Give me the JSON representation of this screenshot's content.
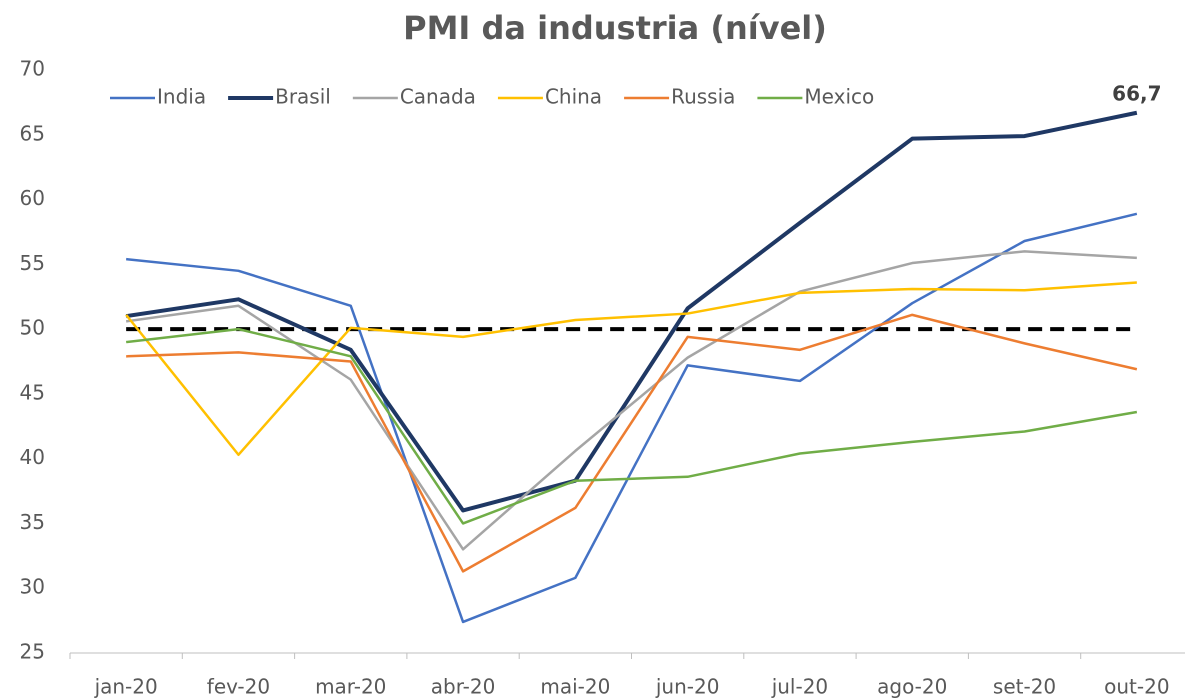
{
  "chart_data": {
    "type": "line",
    "title": "PMI da industria (nível)",
    "categories": [
      "jan-20",
      "fev-20",
      "mar-20",
      "abr-20",
      "mai-20",
      "jun-20",
      "jul-20",
      "ago-20",
      "set-20",
      "out-20"
    ],
    "series": [
      {
        "name": "India",
        "color": "#4472c4",
        "values": [
          55.4,
          54.5,
          51.8,
          27.4,
          30.8,
          47.2,
          46.0,
          52.0,
          56.8,
          58.9
        ]
      },
      {
        "name": "Brasil",
        "color": "#1f3864",
        "values": [
          51.0,
          52.3,
          48.4,
          36.0,
          38.3,
          51.6,
          58.2,
          64.7,
          64.9,
          66.7
        ],
        "value_labels": [
          null,
          null,
          null,
          null,
          null,
          null,
          null,
          null,
          null,
          "66,7"
        ]
      },
      {
        "name": "Canada",
        "color": "#a5a5a5",
        "values": [
          50.6,
          51.8,
          46.1,
          33.0,
          40.6,
          47.8,
          52.9,
          55.1,
          56.0,
          55.5
        ]
      },
      {
        "name": "China",
        "color": "#ffc000",
        "values": [
          51.1,
          40.3,
          50.1,
          49.4,
          50.7,
          51.2,
          52.8,
          53.1,
          53.0,
          53.6
        ]
      },
      {
        "name": "Russia",
        "color": "#ed7d31",
        "values": [
          47.9,
          48.2,
          47.5,
          31.3,
          36.2,
          49.4,
          48.4,
          51.1,
          48.9,
          46.9
        ]
      },
      {
        "name": "Mexico",
        "color": "#70ad47",
        "values": [
          49.0,
          50.0,
          47.9,
          35.0,
          38.3,
          38.6,
          40.4,
          41.3,
          42.1,
          43.6
        ]
      }
    ],
    "reference_line": 50,
    "ylim": [
      25,
      70
    ],
    "yticks": [
      25,
      30,
      35,
      40,
      45,
      50,
      55,
      60,
      65,
      70
    ],
    "grid": false,
    "legend": "top"
  }
}
